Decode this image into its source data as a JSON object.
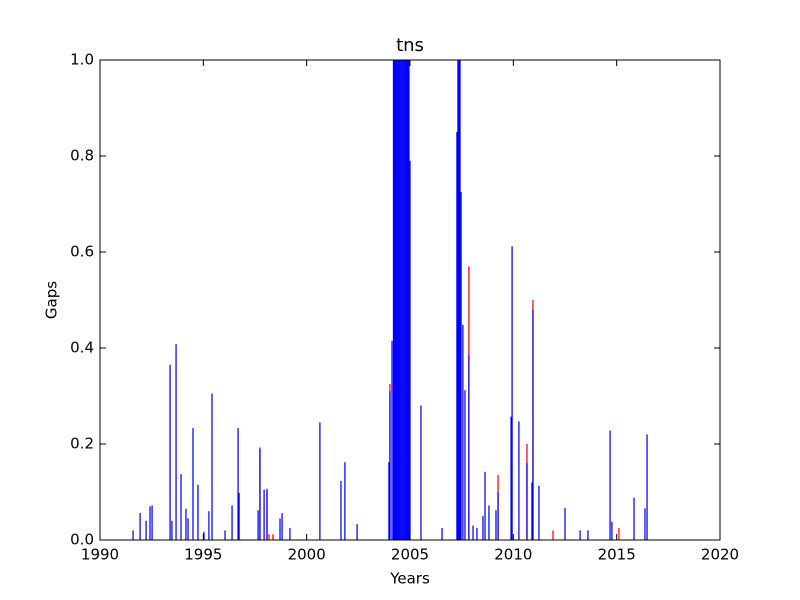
{
  "chart_data": {
    "type": "bar",
    "title": "tns",
    "x_label": "Years",
    "y_label": "Gaps",
    "xlim": [
      1990,
      2020
    ],
    "xticks": [
      1990,
      1995,
      2000,
      2005,
      2010,
      2015,
      2020
    ],
    "ylim": [
      0,
      1
    ],
    "yticks": [
      {
        "value": 0,
        "label": "0.0"
      },
      0.2,
      0.4,
      0.6,
      0.8,
      {
        "value": 1,
        "label": "1.0"
      }
    ],
    "grid": false,
    "series": [
      {
        "color": "#ff0000",
        "x": [
          1997.74,
          1998.08,
          1998.18,
          1998.37,
          2004.03,
          2007.85,
          2009.26,
          2010.66,
          2010.95,
          2011.92,
          2015.11
        ],
        "values": [
          0.193,
          0.107,
          0.012,
          0.012,
          0.325,
          0.57,
          0.135,
          0.2,
          0.5,
          0.02,
          0.025
        ]
      },
      {
        "color": "#0000ff",
        "x": [
          1991.6,
          1991.94,
          1992.23,
          1992.42,
          1992.52,
          1993.39,
          1993.48,
          1993.68,
          1993.92,
          1994.16,
          1994.26,
          1994.5,
          1994.74,
          1995.03,
          1995.27,
          1995.42,
          1996.05,
          1996.39,
          1996.68,
          1996.73,
          1997.65,
          1997.74,
          1997.94,
          1998.08,
          1998.71,
          1998.81,
          1999.19,
          2000.64,
          2001.66,
          2001.85,
          2002.44,
          2003.98,
          2004.03,
          2004.13,
          2004.2,
          2004.25,
          2004.3,
          2004.35,
          2004.4,
          2004.45,
          2004.5,
          2004.55,
          2004.6,
          2004.65,
          2004.7,
          2004.75,
          2004.8,
          2004.85,
          2004.9,
          2004.95,
          2005.0,
          2005.53,
          2006.55,
          2007.27,
          2007.32,
          2007.37,
          2007.42,
          2007.47,
          2007.56,
          2007.66,
          2007.85,
          2008.05,
          2008.24,
          2008.53,
          2008.63,
          2008.82,
          2009.16,
          2009.26,
          2009.89,
          2009.94,
          2010.27,
          2010.66,
          2010.9,
          2010.95,
          2011.24,
          2012.5,
          2013.23,
          2013.61,
          2014.68,
          2014.77,
          2015.84,
          2016.37,
          2016.47
        ],
        "values": [
          0.02,
          0.056,
          0.04,
          0.07,
          0.072,
          0.365,
          0.04,
          0.408,
          0.137,
          0.065,
          0.045,
          0.233,
          0.115,
          0.017,
          0.06,
          0.305,
          0.02,
          0.072,
          0.233,
          0.098,
          0.062,
          0.19,
          0.105,
          0.105,
          0.045,
          0.056,
          0.025,
          0.245,
          0.123,
          0.162,
          0.033,
          0.162,
          0.31,
          0.415,
          1,
          1,
          1,
          1,
          1,
          1,
          1,
          1,
          1,
          1,
          1,
          1,
          1,
          1,
          1,
          1,
          0.79,
          0.28,
          0.025,
          0.85,
          1,
          1,
          1,
          0.725,
          0.448,
          0.312,
          0.385,
          0.03,
          0.025,
          0.05,
          0.142,
          0.072,
          0.062,
          0.1,
          0.257,
          0.612,
          0.247,
          0.16,
          0.12,
          0.48,
          0.113,
          0.067,
          0.02,
          0.02,
          0.228,
          0.038,
          0.088,
          0.066,
          0.22
        ]
      }
    ]
  }
}
